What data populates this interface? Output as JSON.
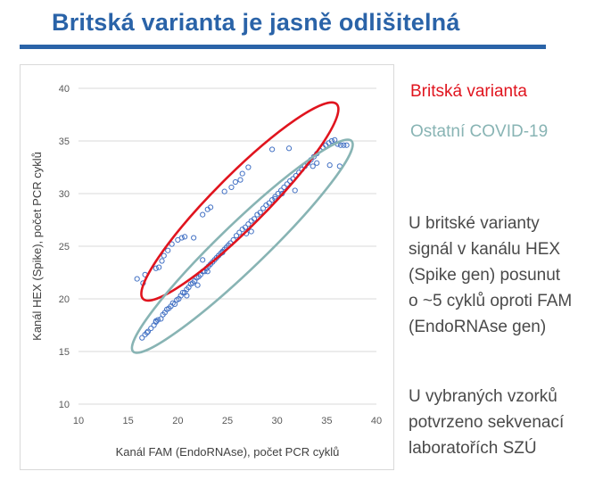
{
  "title": "Britská varianta je jasně odlišitelná",
  "legend": {
    "british": {
      "label": "Britská varianta",
      "color": "#e0141e"
    },
    "other": {
      "label": "Ostatní COVID-19",
      "color": "#88b4b4"
    }
  },
  "description": {
    "lines": [
      "U britské varianty",
      "signál v kanálu HEX",
      "(Spike gen) posunut",
      "o ~5 cyklů oproti FAM",
      "(EndoRNAse gen)"
    ]
  },
  "note": {
    "lines": [
      "U vybraných vzorků",
      "potvrzeno sekvenací",
      "laboratořích SZÚ"
    ]
  },
  "colors": {
    "title": "#2a63a8",
    "points": "#4472c4",
    "grid": "#d9d9d9"
  },
  "chart_data": {
    "type": "scatter",
    "xlabel": "Kanál FAM (EndoRNAse), počet PCR cyklů",
    "ylabel": "Kanál HEX (Spike), počet PCR cyklů",
    "xlim": [
      10,
      40
    ],
    "ylim": [
      10,
      40
    ],
    "xticks": [
      10,
      15,
      20,
      25,
      30,
      35,
      40
    ],
    "yticks": [
      10,
      15,
      20,
      25,
      30,
      35,
      40
    ],
    "grid": "horizontal",
    "series": [
      {
        "group": "british",
        "points": [
          [
            15.9,
            21.9
          ],
          [
            16.7,
            22.3
          ],
          [
            16.5,
            21.5
          ],
          [
            17.8,
            22.9
          ],
          [
            18.1,
            23.0
          ],
          [
            18.6,
            24.1
          ],
          [
            18.4,
            23.6
          ],
          [
            19.0,
            24.6
          ],
          [
            19.4,
            25.2
          ],
          [
            20.4,
            25.8
          ],
          [
            20.7,
            25.9
          ],
          [
            21.6,
            25.8
          ],
          [
            20.0,
            25.6
          ],
          [
            22.5,
            28.0
          ],
          [
            23.0,
            28.5
          ],
          [
            23.3,
            28.7
          ],
          [
            24.7,
            30.2
          ],
          [
            25.4,
            30.6
          ],
          [
            25.8,
            31.1
          ],
          [
            26.3,
            31.3
          ],
          [
            26.5,
            31.9
          ],
          [
            27.1,
            32.5
          ],
          [
            29.5,
            34.2
          ],
          [
            31.2,
            34.3
          ]
        ]
      },
      {
        "group": "other",
        "points": [
          [
            16.4,
            16.3
          ],
          [
            16.7,
            16.6
          ],
          [
            17.0,
            16.9
          ],
          [
            17.3,
            17.2
          ],
          [
            17.6,
            17.5
          ],
          [
            17.8,
            17.8
          ],
          [
            18.0,
            18.0
          ],
          [
            18.3,
            18.1
          ],
          [
            18.5,
            18.5
          ],
          [
            18.7,
            18.7
          ],
          [
            18.9,
            19.0
          ],
          [
            19.1,
            19.1
          ],
          [
            19.3,
            19.3
          ],
          [
            19.5,
            19.6
          ],
          [
            19.7,
            19.5
          ],
          [
            19.9,
            19.9
          ],
          [
            20.1,
            20.0
          ],
          [
            20.3,
            20.3
          ],
          [
            20.5,
            20.6
          ],
          [
            20.7,
            20.6
          ],
          [
            20.9,
            20.9
          ],
          [
            21.1,
            21.1
          ],
          [
            21.3,
            21.4
          ],
          [
            21.5,
            21.5
          ],
          [
            21.7,
            21.7
          ],
          [
            21.9,
            22.0
          ],
          [
            22.1,
            22.1
          ],
          [
            22.3,
            22.3
          ],
          [
            22.5,
            22.6
          ],
          [
            22.7,
            22.6
          ],
          [
            22.9,
            22.9
          ],
          [
            23.1,
            23.1
          ],
          [
            23.3,
            23.3
          ],
          [
            23.5,
            23.5
          ],
          [
            23.7,
            23.7
          ],
          [
            23.9,
            23.9
          ],
          [
            24.1,
            24.1
          ],
          [
            24.3,
            24.3
          ],
          [
            24.5,
            24.5
          ],
          [
            24.7,
            24.7
          ],
          [
            24.9,
            24.9
          ],
          [
            25.1,
            25.1
          ],
          [
            25.3,
            25.3
          ],
          [
            25.6,
            25.6
          ],
          [
            25.9,
            26.0
          ],
          [
            26.2,
            26.3
          ],
          [
            26.5,
            26.6
          ],
          [
            26.8,
            26.8
          ],
          [
            27.1,
            27.1
          ],
          [
            27.4,
            27.4
          ],
          [
            27.7,
            27.6
          ],
          [
            28.0,
            28.0
          ],
          [
            28.3,
            28.2
          ],
          [
            28.6,
            28.6
          ],
          [
            28.9,
            28.9
          ],
          [
            29.2,
            29.1
          ],
          [
            29.5,
            29.4
          ],
          [
            29.8,
            29.7
          ],
          [
            30.1,
            30.0
          ],
          [
            30.4,
            30.3
          ],
          [
            30.7,
            30.6
          ],
          [
            31.0,
            30.9
          ],
          [
            31.3,
            31.2
          ],
          [
            31.6,
            31.4
          ],
          [
            31.9,
            31.7
          ],
          [
            32.2,
            32.0
          ],
          [
            32.5,
            32.3
          ],
          [
            32.8,
            32.6
          ],
          [
            33.1,
            32.9
          ],
          [
            33.4,
            33.2
          ],
          [
            33.7,
            33.5
          ],
          [
            34.0,
            33.8
          ],
          [
            34.3,
            34.1
          ],
          [
            34.6,
            34.4
          ],
          [
            34.9,
            34.6
          ],
          [
            35.2,
            34.8
          ],
          [
            35.5,
            35.0
          ],
          [
            35.8,
            35.1
          ],
          [
            36.1,
            34.7
          ],
          [
            36.4,
            34.6
          ],
          [
            36.7,
            34.6
          ],
          [
            37.0,
            34.6
          ],
          [
            35.3,
            32.7
          ],
          [
            36.3,
            32.6
          ],
          [
            33.6,
            32.6
          ],
          [
            34.0,
            32.9
          ],
          [
            31.8,
            30.3
          ],
          [
            30.5,
            30.0
          ],
          [
            29.8,
            29.5
          ],
          [
            27.4,
            26.4
          ],
          [
            26.9,
            26.2
          ],
          [
            24.5,
            24.4
          ],
          [
            23.0,
            22.6
          ],
          [
            22.0,
            21.3
          ],
          [
            20.9,
            20.3
          ],
          [
            17.8,
            17.9
          ],
          [
            16.9,
            16.8
          ],
          [
            22.5,
            23.7
          ]
        ]
      }
    ],
    "ellipses": [
      {
        "group": "british",
        "p1": [
          16.5,
          20.0
        ],
        "p2": [
          36.0,
          38.5
        ],
        "minor": 5.2
      },
      {
        "group": "other",
        "p1": [
          15.5,
          15.0
        ],
        "p2": [
          37.5,
          35.0
        ],
        "minor": 4.6
      }
    ]
  }
}
